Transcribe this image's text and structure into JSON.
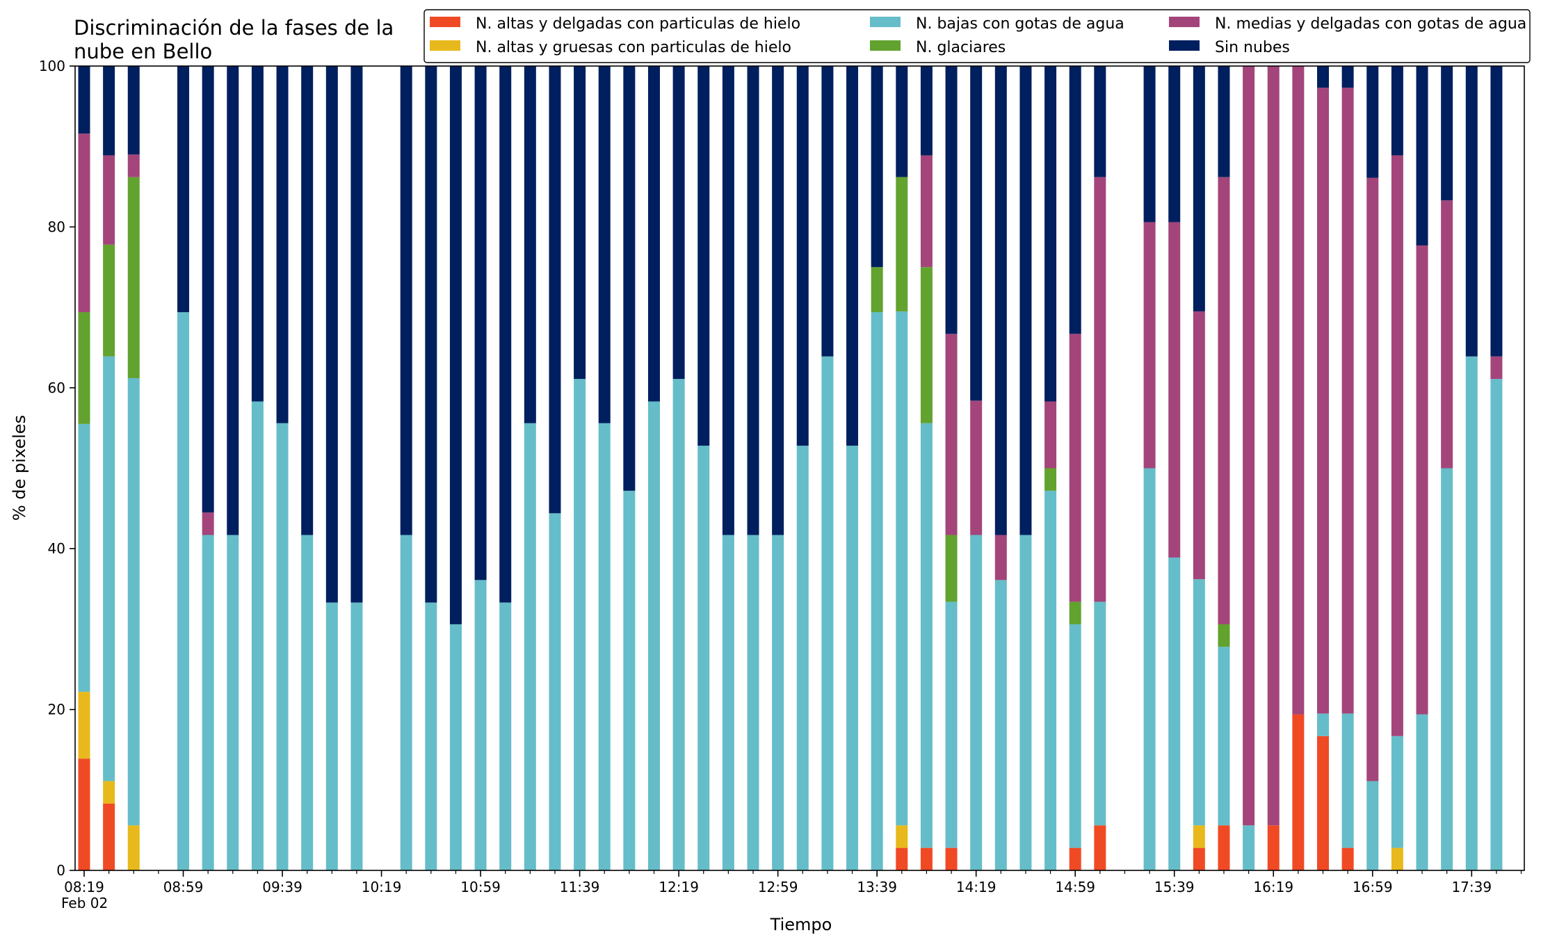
{
  "chart_data": {
    "type": "bar",
    "stacked": true,
    "title_lines": [
      "Discriminación de la fases de la",
      "nube en Bello"
    ],
    "xlabel": "Tiempo",
    "ylabel": "% de pixeles",
    "ylim": [
      0,
      100
    ],
    "yticks": [
      0,
      20,
      40,
      60,
      80,
      100
    ],
    "x_start": "08:19",
    "x_step_minutes": 10,
    "x_tick_labels": [
      {
        "slot": 0,
        "label": "08:19"
      },
      {
        "slot": 4,
        "label": "08:59"
      },
      {
        "slot": 8,
        "label": "09:39"
      },
      {
        "slot": 12,
        "label": "10:19"
      },
      {
        "slot": 16,
        "label": "10:59"
      },
      {
        "slot": 20,
        "label": "11:39"
      },
      {
        "slot": 24,
        "label": "12:19"
      },
      {
        "slot": 28,
        "label": "12:59"
      },
      {
        "slot": 32,
        "label": "13:39"
      },
      {
        "slot": 36,
        "label": "14:19"
      },
      {
        "slot": 40,
        "label": "14:59"
      },
      {
        "slot": 44,
        "label": "15:39"
      },
      {
        "slot": 48,
        "label": "16:19"
      },
      {
        "slot": 52,
        "label": "16:59"
      },
      {
        "slot": 56,
        "label": "17:39"
      }
    ],
    "x_sub_label": "Feb 02",
    "legend_position": "top-right",
    "legend_columns": 3,
    "legend_order": [
      0,
      1,
      2,
      3,
      4,
      5
    ],
    "series": [
      {
        "name": "N. altas y delgadas con particulas de hielo",
        "color": "#f04a25"
      },
      {
        "name": "N. altas y gruesas con particulas de hielo",
        "color": "#e8b91c"
      },
      {
        "name": "N. bajas con gotas de agua",
        "color": "#65bdc9"
      },
      {
        "name": "N. glaciares",
        "color": "#62a22f"
      },
      {
        "name": "N. medias y delgadas con gotas de agua",
        "color": "#a3457a"
      },
      {
        "name": "Sin nubes",
        "color": "#001f5f"
      }
    ],
    "bars": [
      {
        "slot": 0,
        "values": [
          13.9,
          8.3,
          33.3,
          13.9,
          22.2,
          8.4
        ]
      },
      {
        "slot": 1,
        "values": [
          8.3,
          2.8,
          52.8,
          13.9,
          11.1,
          11.1
        ]
      },
      {
        "slot": 2,
        "values": [
          0,
          5.6,
          55.6,
          25,
          2.8,
          11
        ]
      },
      {
        "slot": 4,
        "values": [
          0,
          0,
          69.4,
          0,
          0,
          30.6
        ]
      },
      {
        "slot": 5,
        "values": [
          0,
          0,
          41.7,
          0,
          2.8,
          55.5
        ]
      },
      {
        "slot": 6,
        "values": [
          0,
          0,
          41.7,
          0,
          0,
          58.3
        ]
      },
      {
        "slot": 7,
        "values": [
          0,
          0,
          58.3,
          0,
          0,
          41.7
        ]
      },
      {
        "slot": 8,
        "values": [
          0,
          0,
          55.6,
          0,
          0,
          44.4
        ]
      },
      {
        "slot": 9,
        "values": [
          0,
          0,
          41.7,
          0,
          0,
          58.3
        ]
      },
      {
        "slot": 10,
        "values": [
          0,
          0,
          33.3,
          0,
          0,
          66.7
        ]
      },
      {
        "slot": 11,
        "values": [
          0,
          0,
          33.3,
          0,
          0,
          66.7
        ]
      },
      {
        "slot": 13,
        "values": [
          0,
          0,
          41.7,
          0,
          0,
          58.3
        ]
      },
      {
        "slot": 14,
        "values": [
          0,
          0,
          33.3,
          0,
          0,
          66.7
        ]
      },
      {
        "slot": 15,
        "values": [
          0,
          0,
          30.6,
          0,
          0,
          69.4
        ]
      },
      {
        "slot": 16,
        "values": [
          0,
          0,
          36.1,
          0,
          0,
          63.9
        ]
      },
      {
        "slot": 17,
        "values": [
          0,
          0,
          33.3,
          0,
          0,
          66.7
        ]
      },
      {
        "slot": 18,
        "values": [
          0,
          0,
          55.6,
          0,
          0,
          44.4
        ]
      },
      {
        "slot": 19,
        "values": [
          0,
          0,
          44.4,
          0,
          0,
          55.6
        ]
      },
      {
        "slot": 20,
        "values": [
          0,
          0,
          61.1,
          0,
          0,
          38.9
        ]
      },
      {
        "slot": 21,
        "values": [
          0,
          0,
          55.6,
          0,
          0,
          44.4
        ]
      },
      {
        "slot": 22,
        "values": [
          0,
          0,
          47.2,
          0,
          0,
          52.8
        ]
      },
      {
        "slot": 23,
        "values": [
          0,
          0,
          58.3,
          0,
          0,
          41.7
        ]
      },
      {
        "slot": 24,
        "values": [
          0,
          0,
          61.1,
          0,
          0,
          38.9
        ]
      },
      {
        "slot": 25,
        "values": [
          0,
          0,
          52.8,
          0,
          0,
          47.2
        ]
      },
      {
        "slot": 26,
        "values": [
          0,
          0,
          41.7,
          0,
          0,
          58.3
        ]
      },
      {
        "slot": 27,
        "values": [
          0,
          0,
          41.7,
          0,
          0,
          58.3
        ]
      },
      {
        "slot": 28,
        "values": [
          0,
          0,
          41.7,
          0,
          0,
          58.3
        ]
      },
      {
        "slot": 29,
        "values": [
          0,
          0,
          52.8,
          0,
          0,
          47.2
        ]
      },
      {
        "slot": 30,
        "values": [
          0,
          0,
          63.9,
          0,
          0,
          36.1
        ]
      },
      {
        "slot": 31,
        "values": [
          0,
          0,
          52.8,
          0,
          0,
          47.2
        ]
      },
      {
        "slot": 32,
        "values": [
          0,
          0,
          69.4,
          5.6,
          0,
          25
        ]
      },
      {
        "slot": 33,
        "values": [
          2.8,
          2.8,
          63.9,
          16.7,
          0,
          13.8
        ]
      },
      {
        "slot": 34,
        "values": [
          2.8,
          0,
          52.8,
          19.4,
          13.9,
          11.1
        ]
      },
      {
        "slot": 35,
        "values": [
          2.8,
          0,
          30.6,
          8.3,
          25,
          33.3
        ]
      },
      {
        "slot": 36,
        "values": [
          0,
          0,
          41.7,
          0,
          16.7,
          41.6
        ]
      },
      {
        "slot": 37,
        "values": [
          0,
          0,
          36.1,
          0,
          5.6,
          58.3
        ]
      },
      {
        "slot": 38,
        "values": [
          0,
          0,
          41.7,
          0,
          0,
          58.3
        ]
      },
      {
        "slot": 39,
        "values": [
          0,
          0,
          47.2,
          2.8,
          8.3,
          41.7
        ]
      },
      {
        "slot": 40,
        "values": [
          2.8,
          0,
          27.8,
          2.8,
          33.3,
          33.3
        ]
      },
      {
        "slot": 41,
        "values": [
          5.6,
          0,
          27.8,
          0,
          52.8,
          13.8
        ]
      },
      {
        "slot": 43,
        "values": [
          0,
          0,
          50,
          0,
          30.6,
          19.4
        ]
      },
      {
        "slot": 44,
        "values": [
          0,
          0,
          38.9,
          0,
          41.7,
          19.4
        ]
      },
      {
        "slot": 45,
        "values": [
          2.8,
          2.8,
          30.6,
          0,
          33.3,
          30.5
        ]
      },
      {
        "slot": 46,
        "values": [
          5.6,
          0,
          22.2,
          2.8,
          55.6,
          13.8
        ]
      },
      {
        "slot": 47,
        "values": [
          0,
          0,
          5.6,
          0,
          94.4,
          0
        ]
      },
      {
        "slot": 48,
        "values": [
          5.6,
          0,
          0,
          0,
          94.4,
          0
        ]
      },
      {
        "slot": 49,
        "values": [
          19.4,
          0,
          0,
          0,
          80.6,
          0
        ]
      },
      {
        "slot": 50,
        "values": [
          16.7,
          0,
          2.8,
          0,
          77.8,
          2.7
        ]
      },
      {
        "slot": 51,
        "values": [
          2.8,
          0,
          16.7,
          0,
          77.8,
          2.7
        ]
      },
      {
        "slot": 52,
        "values": [
          0,
          0,
          11.1,
          0,
          75,
          13.9
        ]
      },
      {
        "slot": 53,
        "values": [
          0,
          2.8,
          13.9,
          0,
          72.2,
          11.1
        ]
      },
      {
        "slot": 54,
        "values": [
          0,
          0,
          19.4,
          0,
          58.3,
          22.3
        ]
      },
      {
        "slot": 55,
        "values": [
          0,
          0,
          50,
          0,
          33.3,
          16.7
        ]
      },
      {
        "slot": 56,
        "values": [
          0,
          0,
          63.9,
          0,
          0,
          36.1
        ]
      },
      {
        "slot": 57,
        "values": [
          0,
          0,
          61.1,
          0,
          2.8,
          36.1
        ]
      }
    ]
  }
}
